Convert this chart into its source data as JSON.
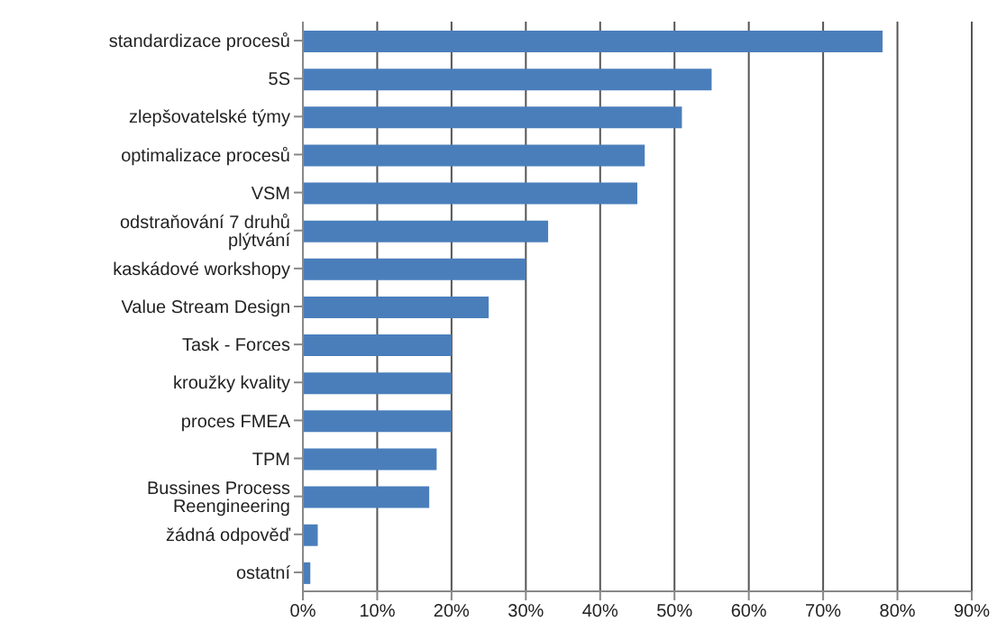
{
  "chart_data": {
    "type": "bar",
    "orientation": "horizontal",
    "categories": [
      "standardizace procesů",
      "5S",
      "zlepšovatelské týmy",
      "optimalizace procesů",
      "VSM",
      "odstraňování 7 druhů plýtvání",
      "kaskádové workshopy",
      "Value Stream Design",
      "Task - Forces",
      "kroužky kvality",
      "proces FMEA",
      "TPM",
      "Bussines Process Reengineering",
      "žádná odpověď",
      "ostatní"
    ],
    "values": [
      78,
      55,
      51,
      46,
      45,
      33,
      30,
      25,
      20,
      20,
      20,
      18,
      17,
      2,
      1
    ],
    "color": "#4a7ebb",
    "xlim": [
      0,
      90
    ],
    "xticks": [
      {
        "value": 0,
        "label": "0%"
      },
      {
        "value": 10,
        "label": "10%"
      },
      {
        "value": 20,
        "label": "20%"
      },
      {
        "value": 30,
        "label": "30%"
      },
      {
        "value": 40,
        "label": "40%"
      },
      {
        "value": 50,
        "label": "50%"
      },
      {
        "value": 60,
        "label": "60%"
      },
      {
        "value": 70,
        "label": "70%"
      },
      {
        "value": 80,
        "label": "80%"
      },
      {
        "value": 90,
        "label": "90%"
      }
    ],
    "grid": "x"
  }
}
